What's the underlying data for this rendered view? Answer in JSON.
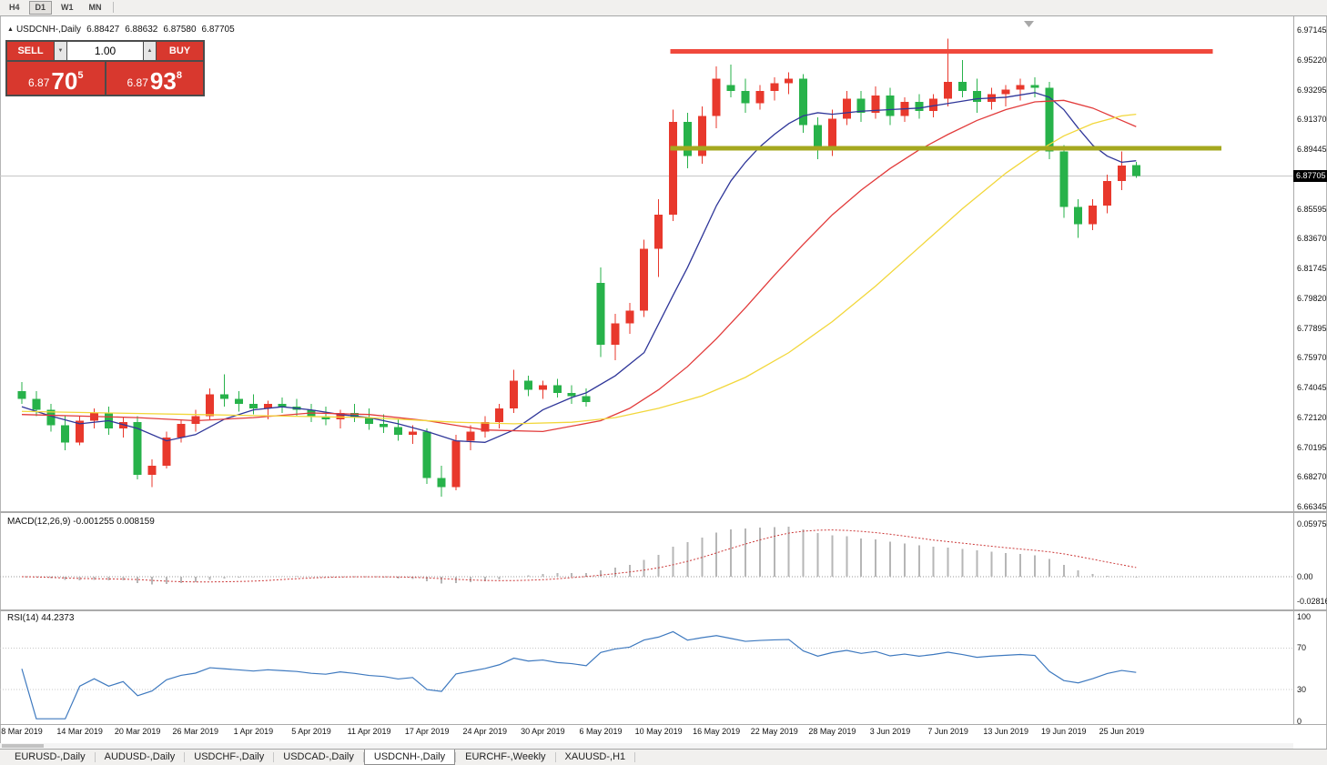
{
  "timeframe_bar": {
    "items": [
      "H4",
      "D1",
      "W1",
      "MN"
    ],
    "active": "D1"
  },
  "chart": {
    "symbol_title": "USDCNH-,Daily",
    "ohlc": {
      "open": "6.88427",
      "high": "6.88632",
      "low": "6.87580",
      "close": "6.87705"
    }
  },
  "icons": {
    "title_marker": "▲",
    "spinner_down": "▼",
    "spinner_up": "▲"
  },
  "trade_panel": {
    "sell_label": "SELL",
    "buy_label": "BUY",
    "volume": "1.00",
    "sell_price": {
      "prefix": "6.87",
      "big": "70",
      "sup": "5"
    },
    "buy_price": {
      "prefix": "6.87",
      "big": "93",
      "sup": "8"
    }
  },
  "price_axis": {
    "labels": [
      "6.97145",
      "6.95220",
      "6.93295",
      "6.91370",
      "6.89445",
      "6.85595",
      "6.83670",
      "6.81745",
      "6.79820",
      "6.77895",
      "6.75970",
      "6.74045",
      "6.72120",
      "6.70195",
      "6.68270",
      "6.66345"
    ],
    "current": "6.87705"
  },
  "macd_panel": {
    "label": "MACD(12,26,9) -0.001255 0.008159",
    "axis": [
      {
        "label": "0.059758",
        "v": 0.059758
      },
      {
        "label": "0.00",
        "v": 0
      },
      {
        "label": "-0.02816",
        "v": -0.02816
      }
    ]
  },
  "rsi_panel": {
    "label": "RSI(14) 44.2373",
    "axis": [
      {
        "label": "100",
        "v": 100
      },
      {
        "label": "70",
        "v": 70
      },
      {
        "label": "30",
        "v": 30
      },
      {
        "label": "0",
        "v": 0
      }
    ]
  },
  "date_axis": [
    {
      "label": "8 Mar 2019",
      "i": 0
    },
    {
      "label": "14 Mar 2019",
      "i": 4
    },
    {
      "label": "20 Mar 2019",
      "i": 8
    },
    {
      "label": "26 Mar 2019",
      "i": 12
    },
    {
      "label": "1 Apr 2019",
      "i": 16
    },
    {
      "label": "5 Apr 2019",
      "i": 20
    },
    {
      "label": "11 Apr 2019",
      "i": 24
    },
    {
      "label": "17 Apr 2019",
      "i": 28
    },
    {
      "label": "24 Apr 2019",
      "i": 32
    },
    {
      "label": "30 Apr 2019",
      "i": 36
    },
    {
      "label": "6 May 2019",
      "i": 40
    },
    {
      "label": "10 May 2019",
      "i": 44
    },
    {
      "label": "16 May 2019",
      "i": 48
    },
    {
      "label": "22 May 2019",
      "i": 52
    },
    {
      "label": "28 May 2019",
      "i": 56
    },
    {
      "label": "3 Jun 2019",
      "i": 60
    },
    {
      "label": "7 Jun 2019",
      "i": 64
    },
    {
      "label": "13 Jun 2019",
      "i": 68
    },
    {
      "label": "19 Jun 2019",
      "i": 72
    },
    {
      "label": "25 Jun 2019",
      "i": 76
    }
  ],
  "bottom_tabs": {
    "active": "USDCNH-,Daily",
    "items": [
      "EURUSD-,Daily",
      "AUDUSD-,Daily",
      "USDCHF-,Daily",
      "USDCAD-,Daily",
      "USDCNH-,Daily",
      "EURCHF-,Weekly",
      "XAUUSD-,H1"
    ]
  },
  "chart_data": {
    "type": "candlestick",
    "symbol": "USDCNH-",
    "timeframe": "Daily",
    "price_range": {
      "top_label_price": 6.97145,
      "bottom_label_price": 6.66345
    },
    "current_price": 6.87705,
    "colors": {
      "bull": "#e8382c",
      "bear": "#27b24a"
    },
    "ohlc_order": [
      "open",
      "high",
      "low",
      "close"
    ],
    "candles_ohlc": [
      [
        6.738,
        6.744,
        6.73,
        6.733
      ],
      [
        6.733,
        6.738,
        6.722,
        6.726
      ],
      [
        6.726,
        6.73,
        6.712,
        6.716
      ],
      [
        6.716,
        6.722,
        6.7,
        6.705
      ],
      [
        6.705,
        6.722,
        6.703,
        6.719
      ],
      [
        6.719,
        6.727,
        6.714,
        6.724
      ],
      [
        6.724,
        6.728,
        6.71,
        6.714
      ],
      [
        6.714,
        6.721,
        6.708,
        6.718
      ],
      [
        6.718,
        6.722,
        6.681,
        6.684
      ],
      [
        6.684,
        6.694,
        6.676,
        6.69
      ],
      [
        6.69,
        6.712,
        6.688,
        6.708
      ],
      [
        6.708,
        6.72,
        6.705,
        6.717
      ],
      [
        6.717,
        6.726,
        6.712,
        6.722
      ],
      [
        6.722,
        6.74,
        6.72,
        6.736
      ],
      [
        6.736,
        6.749,
        6.728,
        6.733
      ],
      [
        6.733,
        6.738,
        6.725,
        6.73
      ],
      [
        6.73,
        6.736,
        6.723,
        6.727
      ],
      [
        6.727,
        6.732,
        6.72,
        6.73
      ],
      [
        6.73,
        6.734,
        6.724,
        6.728
      ],
      [
        6.728,
        6.733,
        6.722,
        6.726
      ],
      [
        6.726,
        6.73,
        6.718,
        6.722
      ],
      [
        6.722,
        6.728,
        6.716,
        6.72
      ],
      [
        6.72,
        6.726,
        6.714,
        6.724
      ],
      [
        6.724,
        6.73,
        6.718,
        6.721
      ],
      [
        6.721,
        6.727,
        6.713,
        6.717
      ],
      [
        6.717,
        6.723,
        6.711,
        6.715
      ],
      [
        6.715,
        6.72,
        6.706,
        6.71
      ],
      [
        6.71,
        6.716,
        6.704,
        6.712
      ],
      [
        6.712,
        6.714,
        6.678,
        6.682
      ],
      [
        6.682,
        6.69,
        6.67,
        6.676
      ],
      [
        6.676,
        6.71,
        6.674,
        6.706
      ],
      [
        6.706,
        6.716,
        6.7,
        6.712
      ],
      [
        6.712,
        6.722,
        6.708,
        6.718
      ],
      [
        6.718,
        6.73,
        6.714,
        6.727
      ],
      [
        6.727,
        6.752,
        6.724,
        6.745
      ],
      [
        6.745,
        6.748,
        6.735,
        6.739
      ],
      [
        6.739,
        6.745,
        6.733,
        6.742
      ],
      [
        6.742,
        6.746,
        6.734,
        6.737
      ],
      [
        6.737,
        6.742,
        6.73,
        6.735
      ],
      [
        6.735,
        6.74,
        6.728,
        6.731
      ],
      [
        6.808,
        6.818,
        6.76,
        6.768
      ],
      [
        6.768,
        6.788,
        6.758,
        6.782
      ],
      [
        6.782,
        6.795,
        6.775,
        6.79
      ],
      [
        6.79,
        6.836,
        6.786,
        6.83
      ],
      [
        6.83,
        6.862,
        6.812,
        6.852
      ],
      [
        6.852,
        6.92,
        6.848,
        6.912
      ],
      [
        6.912,
        6.918,
        6.882,
        6.89
      ],
      [
        6.89,
        6.922,
        6.885,
        6.916
      ],
      [
        6.916,
        6.948,
        6.908,
        6.94
      ],
      [
        6.936,
        6.949,
        6.928,
        6.932
      ],
      [
        6.932,
        6.94,
        6.918,
        6.924
      ],
      [
        6.924,
        6.936,
        6.92,
        6.932
      ],
      [
        6.932,
        6.941,
        6.926,
        6.937
      ],
      [
        6.937,
        6.944,
        6.93,
        6.94
      ],
      [
        6.94,
        6.943,
        6.905,
        6.91
      ],
      [
        6.91,
        6.915,
        6.888,
        6.894
      ],
      [
        6.894,
        6.92,
        6.89,
        6.914
      ],
      [
        6.914,
        6.932,
        6.91,
        6.927
      ],
      [
        6.927,
        6.932,
        6.912,
        6.918
      ],
      [
        6.918,
        6.935,
        6.914,
        6.929
      ],
      [
        6.929,
        6.934,
        6.91,
        6.916
      ],
      [
        6.916,
        6.928,
        6.912,
        6.925
      ],
      [
        6.925,
        6.93,
        6.914,
        6.919
      ],
      [
        6.919,
        6.93,
        6.915,
        6.927
      ],
      [
        6.927,
        6.966,
        6.922,
        6.938
      ],
      [
        6.938,
        6.952,
        6.928,
        6.932
      ],
      [
        6.932,
        6.94,
        6.918,
        6.925
      ],
      [
        6.925,
        6.934,
        6.92,
        6.93
      ],
      [
        6.93,
        6.936,
        6.922,
        6.933
      ],
      [
        6.933,
        6.94,
        6.926,
        6.936
      ],
      [
        6.936,
        6.941,
        6.928,
        6.934
      ],
      [
        6.934,
        6.938,
        6.888,
        6.893
      ],
      [
        6.893,
        6.897,
        6.85,
        6.857
      ],
      [
        6.857,
        6.862,
        6.837,
        6.846
      ],
      [
        6.846,
        6.862,
        6.842,
        6.858
      ],
      [
        6.858,
        6.878,
        6.853,
        6.874
      ],
      [
        6.874,
        6.893,
        6.868,
        6.884
      ],
      [
        6.88427,
        6.88632,
        6.8758,
        6.87705
      ]
    ],
    "moving_averages": [
      {
        "name": "ma-fast",
        "color": "#2f3699",
        "points": [
          [
            0,
            6.728
          ],
          [
            2,
            6.722
          ],
          [
            4,
            6.717
          ],
          [
            6,
            6.719
          ],
          [
            8,
            6.714
          ],
          [
            10,
            6.706
          ],
          [
            12,
            6.71
          ],
          [
            14,
            6.72
          ],
          [
            16,
            6.726
          ],
          [
            18,
            6.728
          ],
          [
            20,
            6.726
          ],
          [
            22,
            6.723
          ],
          [
            24,
            6.721
          ],
          [
            26,
            6.717
          ],
          [
            28,
            6.712
          ],
          [
            30,
            6.706
          ],
          [
            32,
            6.705
          ],
          [
            34,
            6.713
          ],
          [
            36,
            6.726
          ],
          [
            38,
            6.734
          ],
          [
            39,
            6.737
          ],
          [
            41,
            6.748
          ],
          [
            43,
            6.763
          ],
          [
            45,
            6.8
          ],
          [
            46,
            6.818
          ],
          [
            47,
            6.838
          ],
          [
            48,
            6.858
          ],
          [
            49,
            6.874
          ],
          [
            50,
            6.886
          ],
          [
            51,
            6.896
          ],
          [
            52,
            6.904
          ],
          [
            53,
            6.911
          ],
          [
            54,
            6.916
          ],
          [
            55,
            6.918
          ],
          [
            56,
            6.917
          ],
          [
            58,
            6.919
          ],
          [
            60,
            6.92
          ],
          [
            62,
            6.921
          ],
          [
            64,
            6.924
          ],
          [
            66,
            6.927
          ],
          [
            68,
            6.928
          ],
          [
            70,
            6.931
          ],
          [
            71,
            6.928
          ],
          [
            72,
            6.92
          ],
          [
            73,
            6.908
          ],
          [
            74,
            6.897
          ],
          [
            75,
            6.89
          ],
          [
            76,
            6.886
          ],
          [
            77,
            6.887
          ]
        ]
      },
      {
        "name": "ma-mid",
        "color": "#e23b3b",
        "points": [
          [
            0,
            6.723
          ],
          [
            4,
            6.722
          ],
          [
            8,
            6.721
          ],
          [
            12,
            6.719
          ],
          [
            16,
            6.721
          ],
          [
            20,
            6.724
          ],
          [
            24,
            6.723
          ],
          [
            28,
            6.719
          ],
          [
            32,
            6.713
          ],
          [
            36,
            6.712
          ],
          [
            40,
            6.719
          ],
          [
            42,
            6.727
          ],
          [
            44,
            6.739
          ],
          [
            46,
            6.754
          ],
          [
            48,
            6.772
          ],
          [
            50,
            6.792
          ],
          [
            52,
            6.813
          ],
          [
            54,
            6.833
          ],
          [
            56,
            6.852
          ],
          [
            58,
            6.868
          ],
          [
            60,
            6.882
          ],
          [
            62,
            6.894
          ],
          [
            64,
            6.904
          ],
          [
            66,
            6.913
          ],
          [
            68,
            6.92
          ],
          [
            70,
            6.925
          ],
          [
            72,
            6.926
          ],
          [
            74,
            6.921
          ],
          [
            76,
            6.913
          ],
          [
            77,
            6.909
          ]
        ]
      },
      {
        "name": "ma-slow",
        "color": "#f2d73b",
        "points": [
          [
            0,
            6.725
          ],
          [
            6,
            6.724
          ],
          [
            12,
            6.723
          ],
          [
            18,
            6.722
          ],
          [
            24,
            6.721
          ],
          [
            30,
            6.718
          ],
          [
            34,
            6.717
          ],
          [
            38,
            6.718
          ],
          [
            41,
            6.721
          ],
          [
            44,
            6.727
          ],
          [
            47,
            6.735
          ],
          [
            50,
            6.747
          ],
          [
            53,
            6.763
          ],
          [
            56,
            6.783
          ],
          [
            59,
            6.806
          ],
          [
            62,
            6.831
          ],
          [
            65,
            6.856
          ],
          [
            68,
            6.879
          ],
          [
            70,
            6.892
          ],
          [
            72,
            6.903
          ],
          [
            74,
            6.911
          ],
          [
            76,
            6.916
          ],
          [
            77,
            6.917
          ]
        ]
      }
    ],
    "horizontal_lines": [
      {
        "name": "resistance-line",
        "price": 6.9575,
        "color": "#f0483c",
        "thickness": 5,
        "from_idx": 44.8,
        "to_idx": 82.3
      },
      {
        "name": "support-line",
        "price": 6.8951,
        "color": "#a5a81f",
        "thickness": 5,
        "from_idx": 44.8,
        "to_idx": 82.9
      }
    ],
    "macd": {
      "params": [
        12,
        26,
        9
      ],
      "value": -0.001255,
      "signal": 0.008159,
      "scale_max": 0.059758,
      "scale_min": -0.02816
    },
    "rsi": {
      "period": 14,
      "value": 44.2373,
      "levels": [
        70,
        30
      ]
    }
  }
}
